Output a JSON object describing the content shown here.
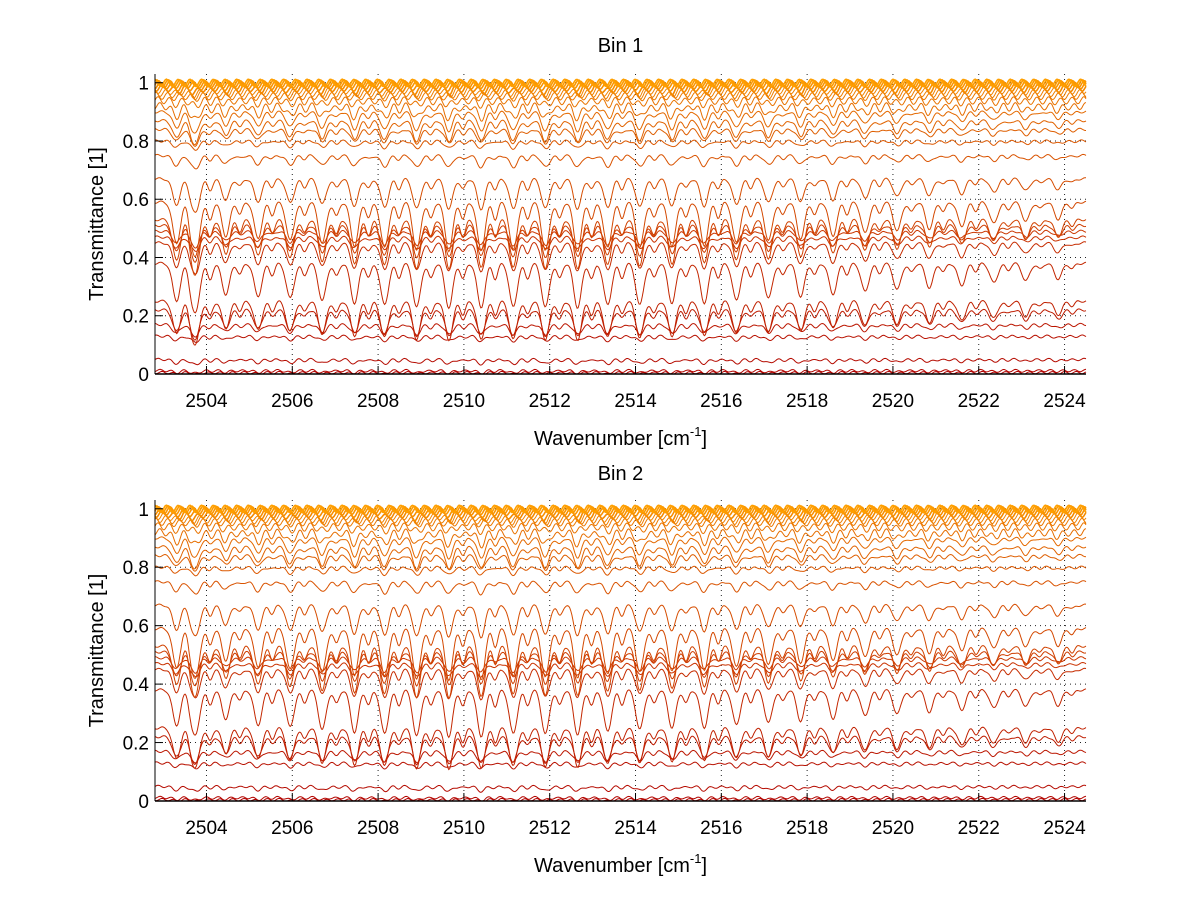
{
  "chart_data": [
    {
      "type": "line",
      "title": "Bin 1",
      "xlabel_main": "Wavenumber [cm",
      "xlabel_sup": "-1",
      "xlabel_tail": "]",
      "ylabel": "Transmittance [1]",
      "xlim": [
        2502.8,
        2524.5
      ],
      "ylim": [
        0,
        1.03
      ],
      "xticks": [
        2504,
        2506,
        2508,
        2510,
        2512,
        2514,
        2516,
        2518,
        2520,
        2522,
        2524
      ],
      "yticks": [
        0,
        0.2,
        0.4,
        0.6,
        0.8,
        1
      ],
      "ytick_labels": [
        "0",
        "0.2",
        "0.4",
        "0.6",
        "0.8",
        "1"
      ],
      "grid": true,
      "baselines": [
        0.005,
        0.012,
        0.05,
        0.13,
        0.17,
        0.22,
        0.25,
        0.38,
        0.45,
        0.47,
        0.49,
        0.51,
        0.53,
        0.59,
        0.67,
        0.75,
        0.8,
        0.84,
        0.87,
        0.9,
        0.92,
        0.94,
        0.955,
        0.965,
        0.975,
        0.983,
        0.99,
        0.995,
        0.998,
        1.0
      ],
      "line_centers": [
        2503.3,
        2503.75,
        2504.45,
        2505.2,
        2505.95,
        2506.7,
        2507.45,
        2508.15,
        2508.9,
        2509.65,
        2510.4,
        2511.15,
        2511.9,
        2512.65,
        2513.35,
        2514.1,
        2514.85,
        2515.6,
        2516.35,
        2517.1,
        2517.85,
        2518.6,
        2519.35,
        2520.1,
        2520.85,
        2521.6,
        2522.35,
        2523.1,
        2523.85
      ],
      "line_strengths": [
        0.85,
        1.1,
        0.7,
        0.75,
        0.8,
        0.85,
        0.9,
        0.95,
        1.0,
        1.0,
        1.0,
        1.0,
        1.0,
        1.0,
        0.95,
        0.95,
        0.9,
        0.9,
        0.85,
        0.8,
        0.75,
        0.7,
        0.65,
        0.6,
        0.55,
        0.5,
        0.45,
        0.4,
        0.35
      ],
      "color_start": "#b00000",
      "color_end": "#ffa000"
    },
    {
      "type": "line",
      "title": "Bin 2",
      "xlabel_main": "Wavenumber [cm",
      "xlabel_sup": "-1",
      "xlabel_tail": "]",
      "ylabel": "Transmittance [1]",
      "xlim": [
        2502.8,
        2524.5
      ],
      "ylim": [
        0,
        1.03
      ],
      "xticks": [
        2504,
        2506,
        2508,
        2510,
        2512,
        2514,
        2516,
        2518,
        2520,
        2522,
        2524
      ],
      "yticks": [
        0,
        0.2,
        0.4,
        0.6,
        0.8,
        1
      ],
      "ytick_labels": [
        "0",
        "0.2",
        "0.4",
        "0.6",
        "0.8",
        "1"
      ],
      "grid": true,
      "baselines": [
        0.005,
        0.012,
        0.05,
        0.13,
        0.17,
        0.22,
        0.25,
        0.38,
        0.45,
        0.47,
        0.49,
        0.51,
        0.53,
        0.59,
        0.67,
        0.75,
        0.8,
        0.84,
        0.87,
        0.9,
        0.92,
        0.94,
        0.955,
        0.965,
        0.975,
        0.983,
        0.99,
        0.995,
        0.998,
        1.0
      ],
      "line_centers": [
        2503.3,
        2503.75,
        2504.45,
        2505.2,
        2505.95,
        2506.7,
        2507.45,
        2508.15,
        2508.9,
        2509.65,
        2510.4,
        2511.15,
        2511.9,
        2512.65,
        2513.35,
        2514.1,
        2514.85,
        2515.6,
        2516.35,
        2517.1,
        2517.85,
        2518.6,
        2519.35,
        2520.1,
        2520.85,
        2521.6,
        2522.35,
        2523.1,
        2523.85
      ],
      "line_strengths": [
        0.8,
        1.0,
        0.65,
        0.8,
        0.85,
        0.9,
        0.95,
        1.0,
        1.05,
        1.05,
        1.05,
        1.0,
        1.0,
        1.0,
        0.95,
        0.9,
        0.85,
        0.85,
        0.8,
        0.75,
        0.7,
        0.65,
        0.6,
        0.55,
        0.5,
        0.45,
        0.42,
        0.38,
        0.35
      ],
      "color_start": "#b00000",
      "color_end": "#ffa000"
    }
  ]
}
